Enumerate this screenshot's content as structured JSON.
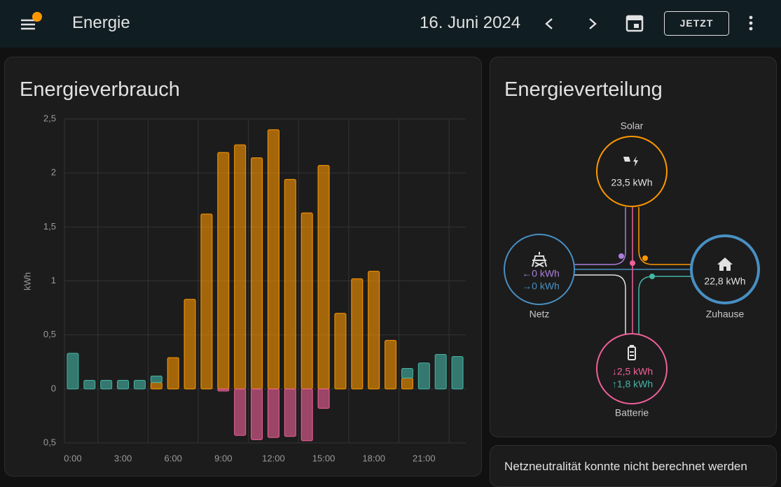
{
  "header": {
    "title": "Energie",
    "date": "16. Juni 2024",
    "now_button": "JETZT"
  },
  "chart_data": {
    "type": "bar",
    "title": "Energieverbrauch",
    "y_label": "kWh",
    "stacked": true,
    "categories": [
      "0:00",
      null,
      null,
      "3:00",
      null,
      null,
      "6:00",
      null,
      null,
      "9:00",
      null,
      null,
      "12:00",
      null,
      null,
      "15:00",
      null,
      null,
      "18:00",
      null,
      null,
      "21:00",
      null,
      null
    ],
    "series": [
      {
        "color": "#ff9800",
        "values": [
          null,
          null,
          null,
          null,
          null,
          0.06,
          0.29,
          0.83,
          1.62,
          2.19,
          2.26,
          2.14,
          2.4,
          1.94,
          1.63,
          2.07,
          0.7,
          1.02,
          1.09,
          0.45,
          0.1,
          null,
          null,
          null
        ]
      },
      {
        "color": "#45b5a6",
        "values": [
          0.33,
          0.08,
          0.08,
          0.08,
          0.08,
          0.06,
          null,
          null,
          null,
          null,
          null,
          null,
          null,
          null,
          null,
          null,
          null,
          null,
          null,
          null,
          0.09,
          0.24,
          0.32,
          0.3
        ]
      },
      {
        "color": "#f0609a",
        "values": [
          null,
          null,
          null,
          null,
          null,
          null,
          null,
          null,
          null,
          -0.02,
          -0.43,
          -0.47,
          -0.45,
          -0.44,
          -0.48,
          -0.18,
          null,
          null,
          null,
          null,
          null,
          null,
          null,
          null
        ]
      }
    ],
    "ylim": [
      -0.5,
      2.5
    ],
    "yticks": [
      {
        "value": 2.5,
        "label": "2,5"
      },
      2,
      {
        "value": 1.5,
        "label": "1,5"
      },
      1,
      {
        "value": 0.5,
        "label": "0,5"
      },
      0,
      {
        "value": -0.5,
        "label": "0,5"
      }
    ],
    "grid": true
  },
  "distribution": {
    "title": "Energieverteilung",
    "solar": {
      "label": "Solar",
      "value": "23,5 kWh"
    },
    "grid": {
      "label": "Netz",
      "in": "←0 kWh",
      "out": "→0 kWh"
    },
    "home": {
      "label": "Zuhause",
      "value": "22,8 kWh"
    },
    "battery": {
      "label": "Batterie",
      "out": "↓2,5 kWh",
      "in": "↑1,8 kWh"
    }
  },
  "notice": {
    "text": "Netzneutralität konnte nicht berechnet werden"
  }
}
